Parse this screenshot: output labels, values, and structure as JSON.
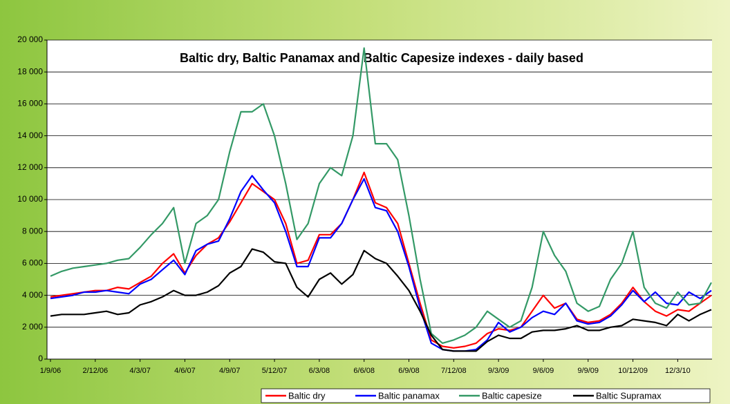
{
  "chart_data": {
    "type": "line",
    "title": "Baltic dry, Baltic Panamax and Baltic Capesize indexes - daily based",
    "categories": [
      "1/9/06",
      null,
      null,
      null,
      "2/12/06",
      null,
      null,
      null,
      "4/3/07",
      null,
      null,
      null,
      "4/6/07",
      null,
      null,
      null,
      "4/9/07",
      null,
      null,
      null,
      "5/12/07",
      null,
      null,
      null,
      "6/3/08",
      null,
      null,
      null,
      "6/6/08",
      null,
      null,
      null,
      "6/9/08",
      null,
      null,
      null,
      "7/12/08",
      null,
      null,
      null,
      "9/3/09",
      null,
      null,
      null,
      "9/6/09",
      null,
      null,
      null,
      "9/9/09",
      null,
      null,
      null,
      "10/12/09",
      null,
      null,
      null,
      "12/3/10",
      null,
      null,
      null
    ],
    "series": [
      {
        "name": "Baltic dry",
        "color": "#ff0000",
        "values": [
          3900,
          4000,
          4100,
          4200,
          4300,
          4300,
          4500,
          4400,
          4800,
          5200,
          6000,
          6600,
          5400,
          6500,
          7200,
          7600,
          8600,
          9800,
          11000,
          10500,
          10000,
          8500,
          6000,
          6200,
          7800,
          7800,
          8500,
          10000,
          11700,
          9800,
          9500,
          8500,
          6000,
          3500,
          1200,
          800,
          700,
          800,
          1000,
          1600,
          1900,
          1800,
          2000,
          3000,
          4000,
          3200,
          3500,
          2500,
          2300,
          2400,
          2800,
          3500,
          4500,
          3600,
          3000,
          2700,
          3100,
          3000,
          3500,
          4000
        ]
      },
      {
        "name": "Baltic panamax",
        "color": "#0000ff",
        "values": [
          3800,
          3900,
          4000,
          4200,
          4200,
          4300,
          4200,
          4100,
          4700,
          5000,
          5600,
          6200,
          5300,
          6800,
          7200,
          7400,
          8800,
          10500,
          11500,
          10600,
          9800,
          8000,
          5800,
          5800,
          7600,
          7600,
          8500,
          10000,
          11300,
          9500,
          9300,
          8000,
          5800,
          3200,
          1000,
          600,
          500,
          500,
          600,
          1200,
          2300,
          1700,
          2000,
          2600,
          3000,
          2800,
          3500,
          2400,
          2200,
          2300,
          2700,
          3400,
          4300,
          3600,
          4200,
          3500,
          3400,
          4200,
          3800,
          4300
        ]
      },
      {
        "name": "Baltic capesize",
        "color": "#339966",
        "values": [
          5200,
          5500,
          5700,
          5800,
          5900,
          6000,
          6200,
          6300,
          7000,
          7800,
          8500,
          9500,
          6000,
          8500,
          9000,
          10000,
          13000,
          15500,
          15500,
          16000,
          14000,
          11000,
          7500,
          8500,
          11000,
          12000,
          11500,
          14000,
          19500,
          13500,
          13500,
          12500,
          9000,
          5000,
          1600,
          1000,
          1200,
          1500,
          2000,
          3000,
          2500,
          2000,
          2400,
          4500,
          8000,
          6500,
          5500,
          3500,
          3000,
          3300,
          5000,
          6000,
          8000,
          4500,
          3500,
          3200,
          4200,
          3400,
          3500,
          4800
        ]
      },
      {
        "name": "Baltic Supramax",
        "color": "#000000",
        "values": [
          2700,
          2800,
          2800,
          2800,
          2900,
          3000,
          2800,
          2900,
          3400,
          3600,
          3900,
          4300,
          4000,
          4000,
          4200,
          4600,
          5400,
          5800,
          6900,
          6700,
          6100,
          6000,
          4500,
          3900,
          5000,
          5400,
          4700,
          5300,
          6800,
          6300,
          6000,
          5200,
          4300,
          3000,
          1500,
          600,
          500,
          500,
          500,
          1100,
          1500,
          1300,
          1300,
          1700,
          1800,
          1800,
          1900,
          2100,
          1800,
          1800,
          2000,
          2100,
          2500,
          2400,
          2300,
          2100,
          2800,
          2400,
          2800,
          3100
        ]
      }
    ],
    "ylim": [
      0,
      20000
    ],
    "yticks": [
      0,
      {
        "value": 2000,
        "label": "2 000"
      },
      {
        "value": 4000,
        "label": "4 000"
      },
      {
        "value": 6000,
        "label": "6 000"
      },
      {
        "value": 8000,
        "label": "8 000"
      },
      {
        "value": 10000,
        "label": "10 000"
      },
      {
        "value": 12000,
        "label": "12 000"
      },
      {
        "value": 14000,
        "label": "14 000"
      },
      {
        "value": 16000,
        "label": "16 000"
      },
      {
        "value": 18000,
        "label": "18 000"
      },
      {
        "value": 20000,
        "label": "20 000"
      }
    ],
    "grid": true,
    "legend": "bottom-right"
  }
}
